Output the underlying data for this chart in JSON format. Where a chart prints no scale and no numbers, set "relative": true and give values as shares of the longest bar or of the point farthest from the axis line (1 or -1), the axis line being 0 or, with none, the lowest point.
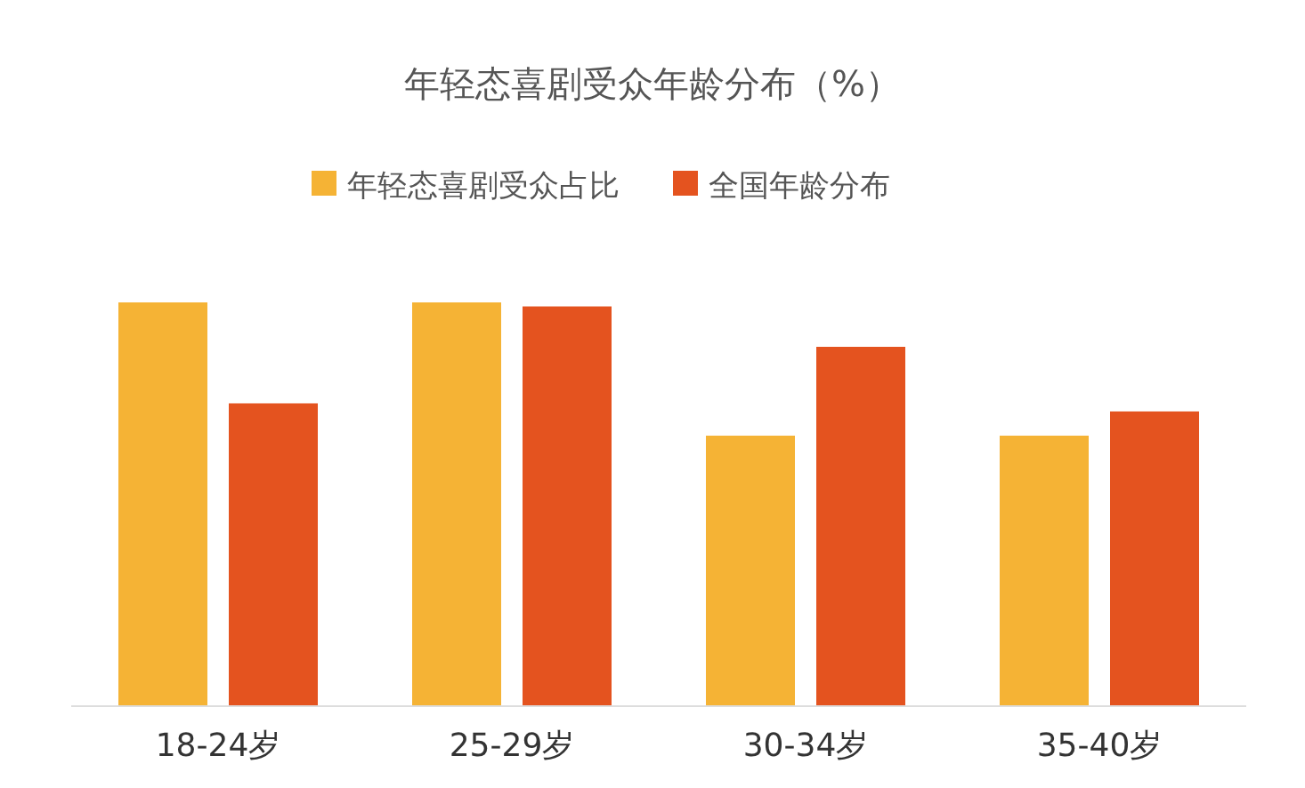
{
  "chart_data": {
    "type": "bar",
    "title": "年轻态喜剧受众年龄分布（%）",
    "relative": true,
    "legend": "top",
    "categories": [
      "18-24岁",
      "25-29岁",
      "30-34岁",
      "35-40岁"
    ],
    "series": [
      {
        "name": "年轻态喜剧受众占比",
        "color": "#f5b335",
        "values": [
          1,
          1,
          0.67,
          0.67
        ]
      },
      {
        "name": "全国年龄分布",
        "color": "#e4531f",
        "values": [
          0.75,
          0.99,
          0.89,
          0.73
        ]
      }
    ]
  }
}
